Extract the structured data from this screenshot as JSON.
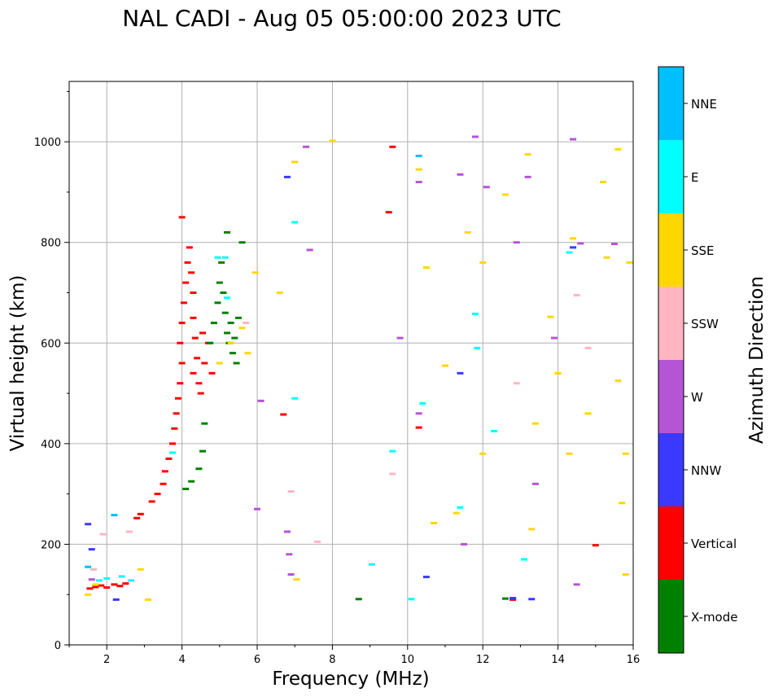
{
  "chart_data": {
    "type": "scatter",
    "title": "NAL CADI - Aug 05 05:00:00 2023 UTC",
    "xlabel": "Frequency (MHz)",
    "ylabel": "Virtual height (km)",
    "xlim": [
      1,
      16
    ],
    "ylim": [
      0,
      1120
    ],
    "xticks": [
      2,
      4,
      6,
      8,
      10,
      12,
      14,
      16
    ],
    "yticks": [
      0,
      200,
      400,
      600,
      800,
      1000
    ],
    "grid": true,
    "colorbar": {
      "label": "Azimuth Direction",
      "categories": [
        {
          "name": "X-mode",
          "color": "#008000"
        },
        {
          "name": "Vertical",
          "color": "#ff0000"
        },
        {
          "name": "NNW",
          "color": "#3a3aff"
        },
        {
          "name": "W",
          "color": "#b455d6"
        },
        {
          "name": "SSW",
          "color": "#ffb6c1"
        },
        {
          "name": "SSE",
          "color": "#ffd700"
        },
        {
          "name": "E",
          "color": "#00ffff"
        },
        {
          "name": "NNE",
          "color": "#00bfff"
        }
      ]
    },
    "series": [
      {
        "name": "Vertical",
        "color": "#ff0000",
        "points": [
          [
            1.55,
            112
          ],
          [
            1.7,
            115
          ],
          [
            1.85,
            118
          ],
          [
            2.0,
            114
          ],
          [
            2.2,
            120
          ],
          [
            2.35,
            117
          ],
          [
            2.5,
            122
          ],
          [
            2.8,
            252
          ],
          [
            2.9,
            260
          ],
          [
            3.2,
            285
          ],
          [
            3.35,
            300
          ],
          [
            3.5,
            320
          ],
          [
            3.55,
            345
          ],
          [
            3.65,
            370
          ],
          [
            3.75,
            400
          ],
          [
            3.8,
            430
          ],
          [
            3.85,
            460
          ],
          [
            3.9,
            490
          ],
          [
            3.95,
            520
          ],
          [
            4.0,
            560
          ],
          [
            3.95,
            600
          ],
          [
            4.0,
            640
          ],
          [
            4.05,
            680
          ],
          [
            4.1,
            720
          ],
          [
            4.15,
            760
          ],
          [
            4.2,
            790
          ],
          [
            4.25,
            740
          ],
          [
            4.3,
            700
          ],
          [
            4.3,
            650
          ],
          [
            4.35,
            610
          ],
          [
            4.4,
            570
          ],
          [
            4.3,
            540
          ],
          [
            4.45,
            520
          ],
          [
            4.5,
            500
          ],
          [
            4.6,
            560
          ],
          [
            4.55,
            620
          ],
          [
            4.7,
            600
          ],
          [
            4.8,
            540
          ],
          [
            4.0,
            850
          ],
          [
            6.7,
            458
          ],
          [
            9.5,
            860
          ],
          [
            9.6,
            990
          ],
          [
            10.3,
            432
          ],
          [
            12.8,
            90
          ],
          [
            15.0,
            198
          ]
        ]
      },
      {
        "name": "X-mode",
        "color": "#008000",
        "points": [
          [
            4.1,
            310
          ],
          [
            4.25,
            325
          ],
          [
            4.45,
            350
          ],
          [
            4.55,
            385
          ],
          [
            4.6,
            440
          ],
          [
            4.75,
            600
          ],
          [
            4.85,
            640
          ],
          [
            4.95,
            680
          ],
          [
            5.0,
            720
          ],
          [
            5.05,
            760
          ],
          [
            5.1,
            700
          ],
          [
            5.15,
            660
          ],
          [
            5.2,
            620
          ],
          [
            5.25,
            600
          ],
          [
            5.3,
            640
          ],
          [
            5.35,
            580
          ],
          [
            5.4,
            610
          ],
          [
            5.45,
            560
          ],
          [
            5.5,
            650
          ],
          [
            5.6,
            800
          ],
          [
            5.2,
            820
          ],
          [
            8.7,
            91
          ],
          [
            12.6,
            92
          ]
        ]
      },
      {
        "name": "NNW",
        "color": "#3a3aff",
        "points": [
          [
            1.5,
            240
          ],
          [
            1.6,
            190
          ],
          [
            2.25,
            90
          ],
          [
            6.8,
            930
          ],
          [
            10.5,
            135
          ],
          [
            11.4,
            540
          ],
          [
            12.8,
            93
          ],
          [
            13.3,
            91
          ],
          [
            14.4,
            790
          ]
        ]
      },
      {
        "name": "W",
        "color": "#b455d6",
        "points": [
          [
            1.6,
            130
          ],
          [
            6.1,
            485
          ],
          [
            6.0,
            270
          ],
          [
            6.8,
            225
          ],
          [
            6.85,
            180
          ],
          [
            6.9,
            140
          ],
          [
            7.3,
            990
          ],
          [
            7.4,
            785
          ],
          [
            9.8,
            610
          ],
          [
            10.3,
            460
          ],
          [
            10.3,
            920
          ],
          [
            11.4,
            935
          ],
          [
            11.5,
            200
          ],
          [
            11.8,
            1010
          ],
          [
            12.1,
            910
          ],
          [
            12.9,
            800
          ],
          [
            13.2,
            930
          ],
          [
            13.4,
            320
          ],
          [
            13.9,
            610
          ],
          [
            14.4,
            1005
          ],
          [
            14.6,
            798
          ],
          [
            15.5,
            797
          ],
          [
            14.5,
            120
          ]
        ]
      },
      {
        "name": "SSW",
        "color": "#ffb6c1",
        "points": [
          [
            1.65,
            150
          ],
          [
            1.9,
            220
          ],
          [
            2.6,
            225
          ],
          [
            5.7,
            640
          ],
          [
            6.9,
            305
          ],
          [
            7.6,
            205
          ],
          [
            9.6,
            340
          ],
          [
            12.9,
            520
          ],
          [
            14.5,
            695
          ],
          [
            14.8,
            590
          ]
        ]
      },
      {
        "name": "SSE",
        "color": "#ffd700",
        "points": [
          [
            1.5,
            100
          ],
          [
            1.7,
            120
          ],
          [
            2.9,
            150
          ],
          [
            3.1,
            90
          ],
          [
            5.0,
            560
          ],
          [
            5.3,
            600
          ],
          [
            5.6,
            630
          ],
          [
            5.75,
            580
          ],
          [
            5.95,
            740
          ],
          [
            6.6,
            700
          ],
          [
            7.0,
            960
          ],
          [
            7.05,
            130
          ],
          [
            8.0,
            1002
          ],
          [
            10.3,
            945
          ],
          [
            10.5,
            750
          ],
          [
            10.7,
            242
          ],
          [
            11.0,
            555
          ],
          [
            11.3,
            262
          ],
          [
            11.6,
            820
          ],
          [
            12.0,
            760
          ],
          [
            12.0,
            380
          ],
          [
            12.6,
            895
          ],
          [
            13.2,
            975
          ],
          [
            13.4,
            440
          ],
          [
            13.3,
            230
          ],
          [
            13.8,
            652
          ],
          [
            14.0,
            540
          ],
          [
            14.3,
            380
          ],
          [
            14.4,
            808
          ],
          [
            14.8,
            460
          ],
          [
            15.2,
            920
          ],
          [
            15.3,
            770
          ],
          [
            15.6,
            985
          ],
          [
            15.6,
            525
          ],
          [
            15.7,
            282
          ],
          [
            15.8,
            140
          ],
          [
            15.9,
            760
          ],
          [
            15.8,
            380
          ]
        ]
      },
      {
        "name": "E",
        "color": "#00ffff",
        "points": [
          [
            1.8,
            128
          ],
          [
            2.0,
            132
          ],
          [
            2.4,
            136
          ],
          [
            2.65,
            128
          ],
          [
            3.75,
            382
          ],
          [
            4.95,
            770
          ],
          [
            5.15,
            770
          ],
          [
            5.2,
            690
          ],
          [
            7.0,
            840
          ],
          [
            7.0,
            490
          ],
          [
            9.05,
            160
          ],
          [
            9.6,
            385
          ],
          [
            10.1,
            91
          ],
          [
            10.4,
            480
          ],
          [
            11.8,
            658
          ],
          [
            11.85,
            590
          ],
          [
            12.3,
            425
          ],
          [
            13.1,
            170
          ],
          [
            14.3,
            780
          ],
          [
            11.4,
            273
          ]
        ]
      },
      {
        "name": "NNE",
        "color": "#00bfff",
        "points": [
          [
            1.5,
            155
          ],
          [
            2.2,
            258
          ],
          [
            10.3,
            972
          ]
        ]
      }
    ]
  }
}
